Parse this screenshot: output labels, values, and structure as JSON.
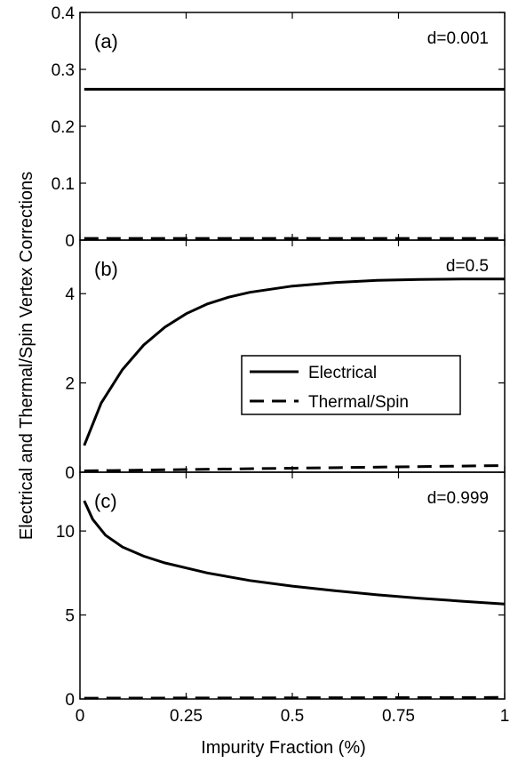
{
  "chart_data": {
    "type": "line",
    "xlabel": "Impurity Fraction (%)",
    "ylabel": "Electrical and Thermal/Spin Vertex Corrections",
    "x_ticks": [
      "0",
      "0.25",
      "0.5",
      "0.75",
      "1"
    ],
    "xlim": [
      0,
      1
    ],
    "legend": {
      "placement": "center-right of panel (b)",
      "entries": [
        {
          "label": "Electrical",
          "style": "solid"
        },
        {
          "label": "Thermal/Spin",
          "style": "dashed"
        }
      ]
    },
    "panels": [
      {
        "label": "(a)",
        "param": "d=0.001",
        "ylim": [
          0,
          0.4
        ],
        "y_ticks": [
          "0",
          "0.1",
          "0.2",
          "0.3",
          "0.4"
        ],
        "series": [
          {
            "name": "Electrical",
            "style": "solid",
            "x": [
              0.01,
              0.25,
              0.5,
              0.75,
              1.0
            ],
            "y": [
              0.265,
              0.265,
              0.265,
              0.265,
              0.265
            ]
          },
          {
            "name": "Thermal/Spin",
            "style": "dashed",
            "x": [
              0.01,
              0.25,
              0.5,
              0.75,
              1.0
            ],
            "y": [
              0.003,
              0.003,
              0.003,
              0.003,
              0.003
            ]
          }
        ]
      },
      {
        "label": "(b)",
        "param": "d=0.5",
        "ylim": [
          0,
          5.2
        ],
        "y_ticks": [
          "0",
          "2",
          "4"
        ],
        "series": [
          {
            "name": "Electrical",
            "style": "solid",
            "x": [
              0.01,
              0.05,
              0.1,
              0.15,
              0.2,
              0.25,
              0.3,
              0.35,
              0.4,
              0.5,
              0.6,
              0.7,
              0.8,
              0.9,
              1.0
            ],
            "y": [
              0.6,
              1.55,
              2.3,
              2.85,
              3.25,
              3.55,
              3.77,
              3.92,
              4.03,
              4.17,
              4.25,
              4.3,
              4.32,
              4.33,
              4.33
            ]
          },
          {
            "name": "Thermal/Spin",
            "style": "dashed",
            "x": [
              0.01,
              0.25,
              0.5,
              0.75,
              1.0
            ],
            "y": [
              0.03,
              0.06,
              0.09,
              0.12,
              0.15
            ]
          }
        ]
      },
      {
        "label": "(c)",
        "param": "d=0.999",
        "ylim": [
          0,
          13.5
        ],
        "y_ticks": [
          "0",
          "5",
          "10"
        ],
        "series": [
          {
            "name": "Electrical",
            "style": "solid",
            "x": [
              0.01,
              0.03,
              0.06,
              0.1,
              0.15,
              0.2,
              0.3,
              0.4,
              0.5,
              0.6,
              0.7,
              0.8,
              0.9,
              1.0
            ],
            "y": [
              11.8,
              10.7,
              9.75,
              9.05,
              8.5,
              8.1,
              7.5,
              7.05,
              6.72,
              6.45,
              6.2,
              6.0,
              5.82,
              5.65
            ]
          },
          {
            "name": "Thermal/Spin",
            "style": "dashed",
            "x": [
              0.01,
              0.25,
              0.5,
              0.75,
              1.0
            ],
            "y": [
              0.05,
              0.06,
              0.07,
              0.08,
              0.09
            ]
          }
        ]
      }
    ]
  }
}
